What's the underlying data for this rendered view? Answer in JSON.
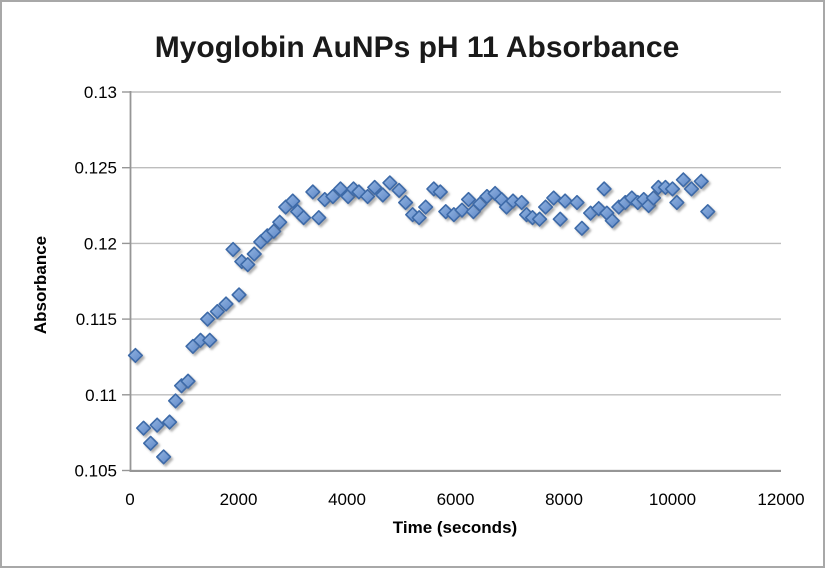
{
  "chart_data": {
    "type": "scatter",
    "title": "Myoglobin AuNPs pH 11 Absorbance",
    "xlabel": "Time (seconds)",
    "ylabel": "Absorbance",
    "xlim": [
      0,
      12000
    ],
    "ylim": [
      0.105,
      0.13
    ],
    "x_ticks": [
      "0",
      "2000",
      "4000",
      "6000",
      "8000",
      "10000",
      "12000"
    ],
    "y_ticks": [
      "0.13",
      "0.125",
      "0.12",
      "0.115",
      "0.11",
      "0.105"
    ],
    "grid": "horizontal-only",
    "legend": "none",
    "marker": "diamond",
    "series": [
      {
        "name": "Absorbance",
        "points": [
          [
            100,
            0.1126
          ],
          [
            250,
            0.1078
          ],
          [
            380,
            0.1068
          ],
          [
            500,
            0.108
          ],
          [
            620,
            0.1059
          ],
          [
            730,
            0.1082
          ],
          [
            840,
            0.1096
          ],
          [
            950,
            0.1106
          ],
          [
            1070,
            0.1109
          ],
          [
            1160,
            0.1132
          ],
          [
            1300,
            0.1136
          ],
          [
            1430,
            0.115
          ],
          [
            1470,
            0.1136
          ],
          [
            1610,
            0.1155
          ],
          [
            1770,
            0.116
          ],
          [
            1900,
            0.1196
          ],
          [
            2010,
            0.1166
          ],
          [
            2060,
            0.1188
          ],
          [
            2170,
            0.1186
          ],
          [
            2290,
            0.1193
          ],
          [
            2410,
            0.1201
          ],
          [
            2530,
            0.1205
          ],
          [
            2650,
            0.1208
          ],
          [
            2760,
            0.1214
          ],
          [
            2870,
            0.1224
          ],
          [
            3000,
            0.1228
          ],
          [
            3090,
            0.1221
          ],
          [
            3200,
            0.1217
          ],
          [
            3370,
            0.1234
          ],
          [
            3480,
            0.1217
          ],
          [
            3590,
            0.1229
          ],
          [
            3740,
            0.1231
          ],
          [
            3880,
            0.1236
          ],
          [
            4020,
            0.1231
          ],
          [
            4120,
            0.1236
          ],
          [
            4220,
            0.1234
          ],
          [
            4380,
            0.1231
          ],
          [
            4510,
            0.1237
          ],
          [
            4660,
            0.1232
          ],
          [
            4790,
            0.124
          ],
          [
            4960,
            0.1235
          ],
          [
            5080,
            0.1227
          ],
          [
            5210,
            0.1219
          ],
          [
            5330,
            0.1217
          ],
          [
            5450,
            0.1224
          ],
          [
            5600,
            0.1236
          ],
          [
            5720,
            0.1234
          ],
          [
            5820,
            0.1221
          ],
          [
            5970,
            0.1219
          ],
          [
            6120,
            0.1222
          ],
          [
            6240,
            0.1229
          ],
          [
            6330,
            0.1221
          ],
          [
            6450,
            0.1226
          ],
          [
            6580,
            0.1231
          ],
          [
            6730,
            0.1233
          ],
          [
            6850,
            0.1229
          ],
          [
            6940,
            0.1224
          ],
          [
            7060,
            0.1228
          ],
          [
            7220,
            0.1227
          ],
          [
            7310,
            0.1219
          ],
          [
            7420,
            0.1217
          ],
          [
            7550,
            0.1216
          ],
          [
            7660,
            0.1224
          ],
          [
            7810,
            0.123
          ],
          [
            7930,
            0.1216
          ],
          [
            8020,
            0.1228
          ],
          [
            8240,
            0.1227
          ],
          [
            8330,
            0.121
          ],
          [
            8490,
            0.122
          ],
          [
            8640,
            0.1223
          ],
          [
            8740,
            0.1236
          ],
          [
            8790,
            0.122
          ],
          [
            8890,
            0.1215
          ],
          [
            9010,
            0.1224
          ],
          [
            9130,
            0.1227
          ],
          [
            9250,
            0.123
          ],
          [
            9360,
            0.1227
          ],
          [
            9470,
            0.1229
          ],
          [
            9560,
            0.1225
          ],
          [
            9650,
            0.123
          ],
          [
            9740,
            0.1237
          ],
          [
            9870,
            0.1237
          ],
          [
            10000,
            0.1236
          ],
          [
            10080,
            0.1227
          ],
          [
            10200,
            0.1242
          ],
          [
            10350,
            0.1236
          ],
          [
            10530,
            0.1241
          ],
          [
            10650,
            0.1221
          ]
        ]
      }
    ],
    "colors": {
      "marker_fill_light": "#93b5e1",
      "marker_fill_dark": "#5e87c7",
      "marker_border": "#3d6aa8",
      "marker_shadow": "#6e6e6e",
      "gridline": "#bdbdbd",
      "axis_line": "#969696",
      "title_color": "#1a1a1a",
      "text_color": "#000000",
      "frame_border": "#a8a8a8",
      "background": "#ffffff"
    }
  }
}
